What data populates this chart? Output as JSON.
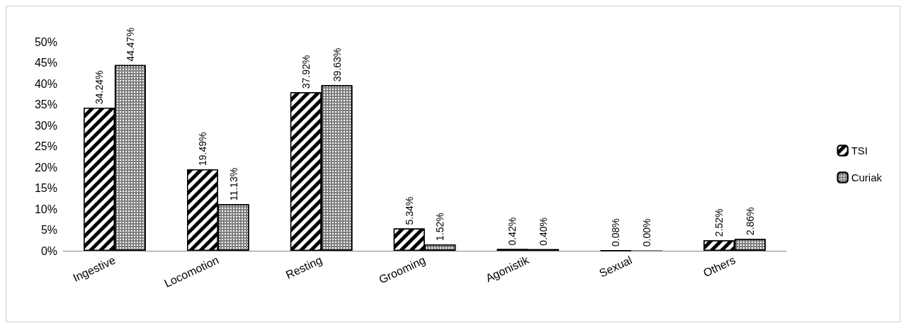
{
  "chart_data": {
    "type": "bar",
    "categories": [
      "Ingestive",
      "Locomotion",
      "Resting",
      "Grooming",
      "Agonistik",
      "Sexual",
      "Others"
    ],
    "series": [
      {
        "name": "TSI",
        "color": "#000000",
        "values": [
          34.24,
          19.49,
          37.92,
          5.34,
          0.42,
          0.08,
          2.52
        ],
        "value_labels": [
          "34.24%",
          "19.49%",
          "37.92%",
          "5.34%",
          "0.42%",
          "0.08%",
          "2.52%"
        ]
      },
      {
        "name": "Curiak",
        "color": "#7f7f7f",
        "values": [
          44.47,
          11.13,
          39.63,
          1.52,
          0.4,
          0.0,
          2.86
        ],
        "value_labels": [
          "44.47%",
          "11.13%",
          "39.63%",
          "1.52%",
          "0.40%",
          "0.00%",
          "2.86%"
        ]
      }
    ],
    "ylim": [
      0,
      50
    ],
    "yticks": [
      {
        "value": 0,
        "label": "0%"
      },
      {
        "value": 5,
        "label": "5%"
      },
      {
        "value": 10,
        "label": "10%"
      },
      {
        "value": 15,
        "label": "15%"
      },
      {
        "value": 20,
        "label": "20%"
      },
      {
        "value": 25,
        "label": "25%"
      },
      {
        "value": 30,
        "label": "30%"
      },
      {
        "value": 35,
        "label": "35%"
      },
      {
        "value": 40,
        "label": "40%"
      },
      {
        "value": 45,
        "label": "45%"
      },
      {
        "value": 50,
        "label": "50%"
      }
    ],
    "grid": false,
    "legend": "right"
  }
}
